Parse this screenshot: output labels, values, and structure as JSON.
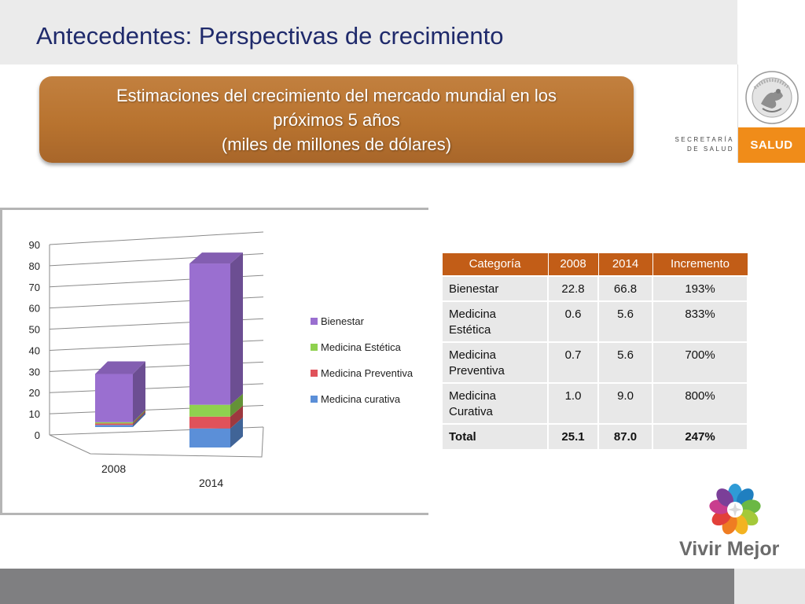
{
  "header": {
    "title": "Antecedentes: Perspectivas de crecimiento"
  },
  "logos": {
    "secretaria_line1": "SECRETARÍA",
    "secretaria_line2": "DE SALUD",
    "salud": "SALUD",
    "seal_text": "ESTADOS UNIDOS MEXICANOS",
    "vivir_mejor": "Vivir Mejor"
  },
  "banner": {
    "line1": "Estimaciones del crecimiento del mercado mundial en los",
    "line2": "próximos 5 años",
    "line3": "(miles de millones de dólares)"
  },
  "colors": {
    "title": "#1f2a6b",
    "banner": "#b8732f",
    "table_header": "#c25d17",
    "salud": "#f08c19",
    "footer": "#7f7f81"
  },
  "chart_data": {
    "type": "bar",
    "stacked": true,
    "three_d": true,
    "categories": [
      "2008",
      "2014"
    ],
    "series": [
      {
        "name": "Medicina curativa",
        "color": "#5b8fd8",
        "values": [
          1.0,
          9.0
        ]
      },
      {
        "name": "Medicina Preventiva",
        "color": "#e0525a",
        "values": [
          0.7,
          5.6
        ]
      },
      {
        "name": "Medicina Estética",
        "color": "#8fd14f",
        "values": [
          0.6,
          5.6
        ]
      },
      {
        "name": "Bienestar",
        "color": "#9a6fd0",
        "values": [
          22.8,
          66.8
        ]
      }
    ],
    "ylim": [
      0,
      90
    ],
    "yticks": [
      "0",
      "10",
      "20",
      "30",
      "40",
      "50",
      "60",
      "70",
      "80",
      "90"
    ],
    "legend_order": [
      "Bienestar",
      "Medicina Estética",
      "Medicina Preventiva",
      "Medicina curativa"
    ],
    "legend_position": "right",
    "grid": true
  },
  "table": {
    "headers": [
      "Categoría",
      "2008",
      "2014",
      "Incremento"
    ],
    "rows": [
      [
        "Bienestar",
        "22.8",
        "66.8",
        "193%"
      ],
      [
        "Medicina Estética",
        "0.6",
        "5.6",
        "833%"
      ],
      [
        "Medicina Preventiva",
        "0.7",
        "5.6",
        "700%"
      ],
      [
        "Medicina Curativa",
        "1.0",
        "9.0",
        "800%"
      ],
      [
        "Total",
        "25.1",
        "87.0",
        "247%"
      ]
    ]
  }
}
